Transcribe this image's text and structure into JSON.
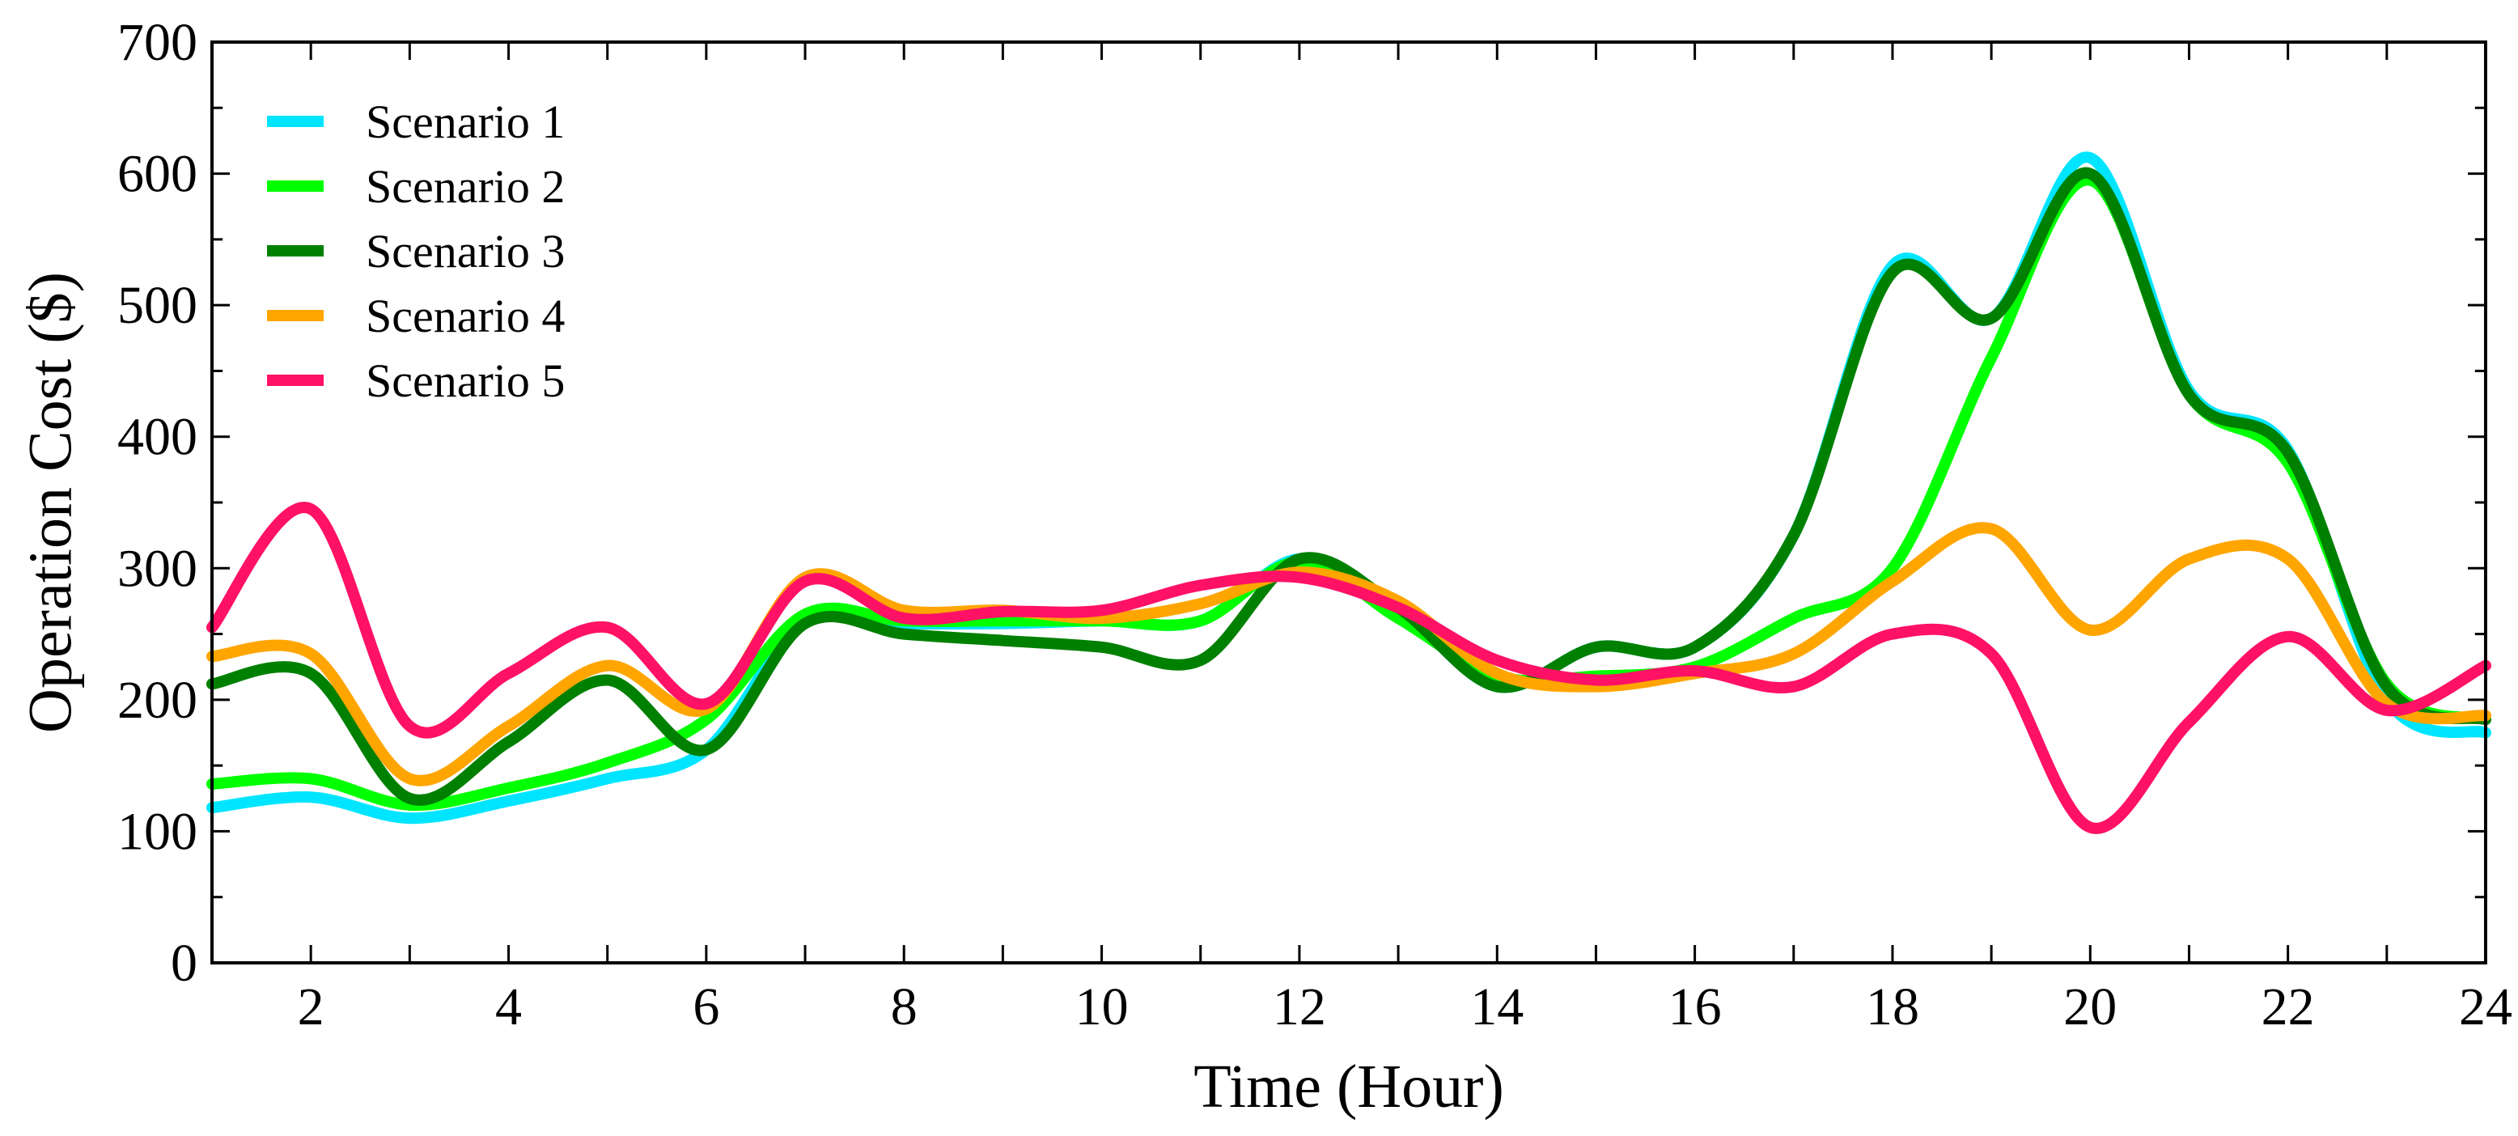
{
  "chart_data": {
    "type": "line",
    "xlabel": "Time (Hour)",
    "ylabel": "Operation Cost ($)",
    "xlim": [
      1,
      24
    ],
    "ylim": [
      0,
      700
    ],
    "xticks": [
      2,
      4,
      6,
      8,
      10,
      12,
      14,
      16,
      18,
      20,
      22,
      24
    ],
    "yticks": [
      0,
      100,
      200,
      300,
      400,
      500,
      600,
      700
    ],
    "grid": false,
    "legend_position": "top-left",
    "x": [
      1,
      2,
      3,
      4,
      5,
      6,
      7,
      8,
      9,
      10,
      11,
      12,
      13,
      14,
      15,
      16,
      17,
      18,
      19,
      20,
      21,
      22,
      23,
      24
    ],
    "series": [
      {
        "name": "Scenario 1",
        "color": "#00e5ff",
        "values": [
          118,
          126,
          110,
          123,
          140,
          162,
          260,
          258,
          258,
          260,
          260,
          307,
          270,
          210,
          240,
          240,
          325,
          530,
          490,
          612,
          435,
          390,
          200,
          175
        ]
      },
      {
        "name": "Scenario 2",
        "color": "#00ff00",
        "values": [
          136,
          140,
          120,
          133,
          152,
          185,
          265,
          260,
          260,
          260,
          260,
          305,
          262,
          218,
          218,
          225,
          262,
          300,
          460,
          595,
          432,
          380,
          212,
          185
        ]
      },
      {
        "name": "Scenario 3",
        "color": "#008000",
        "values": [
          212,
          220,
          125,
          168,
          215,
          162,
          258,
          250,
          245,
          240,
          230,
          307,
          270,
          210,
          240,
          240,
          325,
          525,
          490,
          600,
          432,
          388,
          210,
          185
        ]
      },
      {
        "name": "Scenario 4",
        "color": "#ffa500",
        "values": [
          233,
          235,
          140,
          180,
          226,
          193,
          293,
          268,
          268,
          262,
          273,
          297,
          275,
          220,
          210,
          220,
          235,
          290,
          330,
          253,
          307,
          307,
          197,
          188
        ]
      },
      {
        "name": "Scenario 5",
        "color": "#ff1166",
        "values": [
          255,
          345,
          180,
          220,
          255,
          197,
          290,
          262,
          267,
          268,
          287,
          293,
          270,
          230,
          215,
          222,
          210,
          250,
          235,
          103,
          183,
          248,
          192,
          226
        ]
      }
    ]
  }
}
